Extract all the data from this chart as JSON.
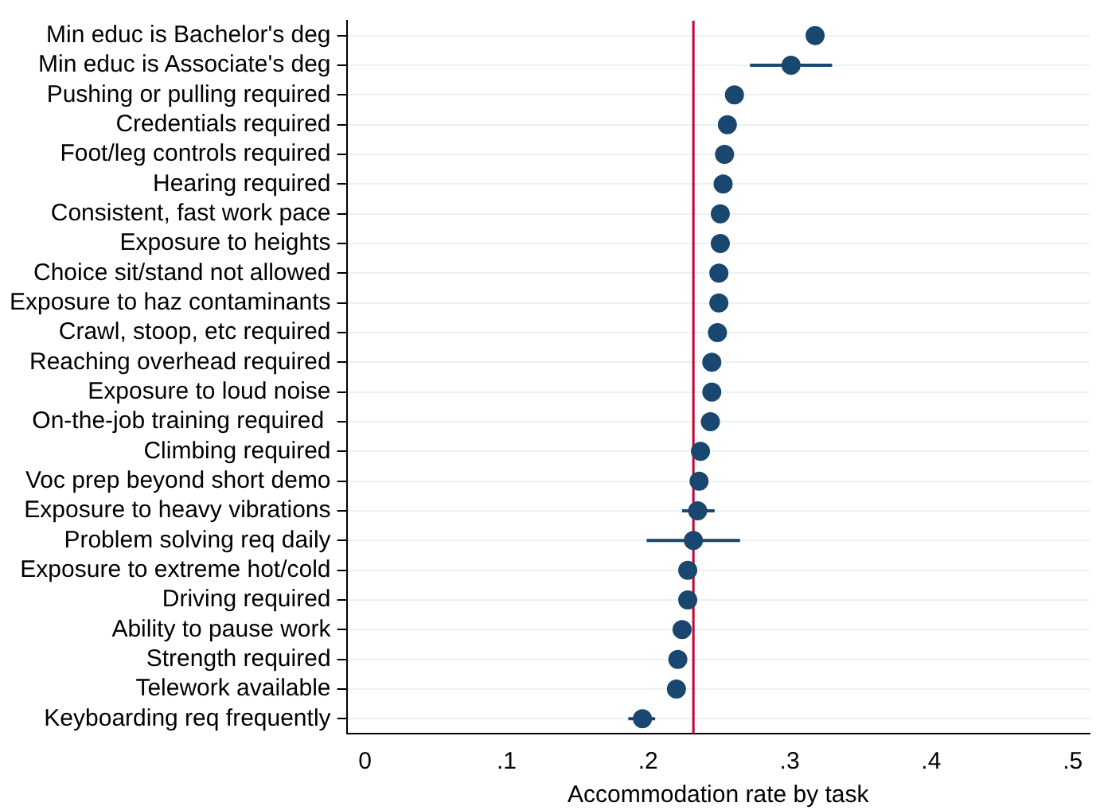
{
  "chart_data": {
    "type": "scatter",
    "orientation": "horizontal",
    "xlabel": "Accommodation rate by task",
    "categories": [
      "Min educ is Bachelor's deg",
      "Min educ is Associate's deg",
      "Pushing or pulling required",
      "Credentials required",
      "Foot/leg controls required",
      "Hearing required",
      "Consistent, fast work pace",
      "Exposure to heights",
      "Choice sit/stand not allowed",
      "Exposure to haz contaminants",
      "Crawl, stoop, etc required",
      "Reaching overhead required",
      "Exposure to loud noise",
      "On-the-job training required ",
      "Climbing required",
      "Voc prep beyond short demo",
      "Exposure to heavy vibrations",
      "Problem solving req daily",
      "Exposure to extreme hot/cold",
      "Driving required",
      "Ability to pause work",
      "Strength required",
      "Telework available",
      "Keyboarding req frequently"
    ],
    "values": [
      0.318,
      0.301,
      0.261,
      0.256,
      0.254,
      0.253,
      0.251,
      0.251,
      0.25,
      0.25,
      0.249,
      0.245,
      0.245,
      0.244,
      0.237,
      0.236,
      0.235,
      0.232,
      0.228,
      0.228,
      0.224,
      0.221,
      0.22,
      0.196
    ],
    "errors": [
      null,
      [
        0.272,
        0.33
      ],
      null,
      null,
      null,
      null,
      null,
      null,
      null,
      null,
      null,
      null,
      null,
      null,
      null,
      null,
      [
        0.224,
        0.247
      ],
      [
        0.199,
        0.265
      ],
      null,
      null,
      null,
      null,
      null,
      [
        0.186,
        0.205
      ]
    ],
    "color": "#1a476f",
    "marker": "circle",
    "grid": "y",
    "legend": false,
    "xlim": [
      -0.013,
      0.512
    ],
    "xticks": [
      0,
      {
        "value": 0.1,
        "label": ".1"
      },
      {
        "value": 0.2,
        "label": ".2"
      },
      {
        "value": 0.3,
        "label": ".3"
      },
      {
        "value": 0.4,
        "label": ".4"
      },
      {
        "value": 0.5,
        "label": ".5"
      }
    ],
    "ref_lines": [
      {
        "axis": "x",
        "value": 0.232,
        "color": "#c10534"
      }
    ]
  }
}
